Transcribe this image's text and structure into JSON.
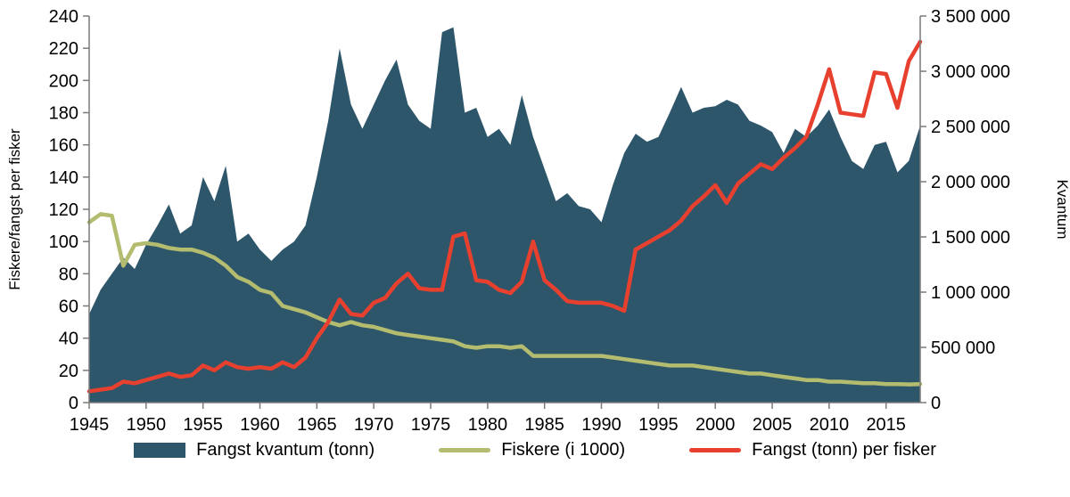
{
  "chart_data": {
    "type": "area",
    "title": "",
    "y_left_label": "Fiskere/fangst per fisker",
    "y_right_label": "Kvantum",
    "y_left_range": [
      0,
      240
    ],
    "y_left_ticks": [
      0,
      20,
      40,
      60,
      80,
      100,
      120,
      140,
      160,
      180,
      200,
      220,
      240
    ],
    "y_right_range": [
      0,
      3500000
    ],
    "y_right_tick_labels": [
      "0",
      "500 000",
      "1 000 000",
      "1 500 000",
      "2 000 000",
      "2 500 000",
      "3 000 000",
      "3 500 000"
    ],
    "x_tick_labels": [
      "1945",
      "1950",
      "1955",
      "1960",
      "1965",
      "1970",
      "1975",
      "1980",
      "1985",
      "1990",
      "1995",
      "2000",
      "2005",
      "2010",
      "2015"
    ],
    "x_tick_years": [
      1945,
      1950,
      1955,
      1960,
      1965,
      1970,
      1975,
      1980,
      1985,
      1990,
      1995,
      2000,
      2005,
      2010,
      2015
    ],
    "grid": false,
    "legend_position": "bottom",
    "years": [
      1945,
      1946,
      1947,
      1948,
      1949,
      1950,
      1951,
      1952,
      1953,
      1954,
      1955,
      1956,
      1957,
      1958,
      1959,
      1960,
      1961,
      1962,
      1963,
      1964,
      1965,
      1966,
      1967,
      1968,
      1969,
      1970,
      1971,
      1972,
      1973,
      1974,
      1975,
      1976,
      1977,
      1978,
      1979,
      1980,
      1981,
      1982,
      1983,
      1984,
      1985,
      1986,
      1987,
      1988,
      1989,
      1990,
      1991,
      1992,
      1993,
      1994,
      1995,
      1996,
      1997,
      1998,
      1999,
      2000,
      2001,
      2002,
      2003,
      2004,
      2005,
      2006,
      2007,
      2008,
      2009,
      2010,
      2011,
      2012,
      2013,
      2014,
      2015,
      2016,
      2017,
      2018
    ],
    "series": [
      {
        "name": "Fangst kvantum (tonn)",
        "type": "area",
        "axis": "right",
        "color": "#2e566b",
        "values": [
          802000,
          1021000,
          1167000,
          1312000,
          1210000,
          1429000,
          1604000,
          1794000,
          1531000,
          1604000,
          2042000,
          1823000,
          2144000,
          1458000,
          1531000,
          1385000,
          1283000,
          1385000,
          1458000,
          1604000,
          2042000,
          2552000,
          3208000,
          2698000,
          2479000,
          2698000,
          2917000,
          3106000,
          2698000,
          2552000,
          2479000,
          3354000,
          3398000,
          2625000,
          2669000,
          2406000,
          2479000,
          2333000,
          2785000,
          2406000,
          2115000,
          1823000,
          1896000,
          1779000,
          1750000,
          1633000,
          1969000,
          2260000,
          2435000,
          2362000,
          2406000,
          2625000,
          2858000,
          2625000,
          2669000,
          2683000,
          2742000,
          2698000,
          2552000,
          2508000,
          2450000,
          2260000,
          2479000,
          2406000,
          2508000,
          2654000,
          2406000,
          2188000,
          2115000,
          2333000,
          2362000,
          2085000,
          2188000,
          2508000
        ]
      },
      {
        "name": "Fiskere (i 1000)",
        "type": "line",
        "axis": "left",
        "color": "#b3bc6f",
        "values": [
          112,
          117,
          116,
          85,
          98,
          99,
          98,
          96,
          95,
          95,
          93,
          90,
          85,
          78,
          75,
          70,
          68,
          60,
          58,
          56,
          53,
          50,
          48,
          50,
          48,
          47,
          45,
          43,
          42,
          41,
          40,
          39,
          38,
          35,
          34,
          35,
          35,
          34,
          35,
          29,
          29,
          29,
          29,
          29,
          29,
          29,
          28,
          27,
          26,
          25,
          24,
          23,
          23,
          23,
          22,
          21,
          20,
          19,
          18,
          18,
          17,
          16,
          15,
          14,
          14,
          13,
          13,
          12.5,
          12,
          12,
          11.5,
          11.5,
          11.3,
          11.5
        ]
      },
      {
        "name": "Fangst (tonn) per fisker",
        "type": "line",
        "axis": "left",
        "color": "#e8402e",
        "values": [
          7,
          8,
          9,
          13,
          12,
          14,
          16,
          18,
          16,
          17,
          23,
          20,
          25,
          22,
          21,
          22,
          21,
          25,
          22,
          28,
          40,
          50,
          64,
          55,
          54,
          62,
          65,
          74,
          80,
          71,
          70,
          70,
          103,
          105,
          76,
          75,
          70,
          68,
          75,
          100,
          76,
          70,
          63,
          62,
          62,
          62,
          60,
          57,
          95,
          99,
          103,
          107,
          113,
          122,
          128,
          135,
          124,
          136,
          142,
          148,
          145,
          152,
          158,
          165,
          185,
          207,
          180,
          179,
          178,
          205,
          204,
          183,
          212,
          224
        ]
      }
    ]
  },
  "style": {
    "axis_line_color": "#7a7a7a",
    "text_color": "#000000"
  }
}
